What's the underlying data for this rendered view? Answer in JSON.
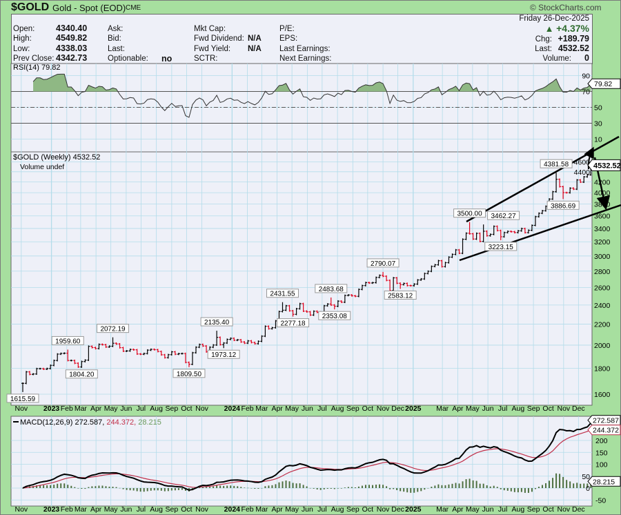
{
  "header": {
    "symbol": "$GOLD",
    "name": "Gold - Spot (EOD)",
    "exchange": "CME",
    "logo": "© StockCharts.com",
    "date": "Friday  26-Dec-2025",
    "change_pct": "+4.37%",
    "change_direction_icon": "up-triangle-icon",
    "fields": {
      "open_label": "Open:",
      "open": "4340.40",
      "high_label": "High:",
      "high": "4549.82",
      "low_label": "Low:",
      "low": "4338.03",
      "prev_close_label": "Prev Close:",
      "prev_close": "4342.73",
      "ask_label": "Ask:",
      "bid_label": "Bid:",
      "last_label_mid": "Last:",
      "optionable_label": "Optionable:",
      "optionable": "no",
      "mkt_cap_label": "Mkt Cap:",
      "fwd_dividend_label": "Fwd Dividend:",
      "fwd_dividend": "N/A",
      "fwd_yield_label": "Fwd Yield:",
      "fwd_yield": "N/A",
      "sctr_label": "SCTR:",
      "pe_label": "P/E:",
      "eps_label": "EPS:",
      "last_earnings_label": "Last Earnings:",
      "next_earnings_label": "Next Earnings:",
      "chg_label": "Chg:",
      "chg": "+189.79",
      "last_label": "Last:",
      "last": "4532.52",
      "volume_label": "Volume:",
      "volume": "0"
    }
  },
  "colors": {
    "background": "#a7df9f",
    "panel": "#eef0f8",
    "grid": "#b3dcea",
    "up": "#000000",
    "down": "#e0001b",
    "macd": "#000000",
    "signal": "#c0304a",
    "histogram": "#4d7040",
    "rsi_fill": "#8fb884",
    "accent_up": "#2e6b2e"
  },
  "chart_data": {
    "type": "ohlc",
    "title": "$GOLD (Weekly) 4532.52",
    "volume_label": "Volume undef",
    "frequency": "weekly",
    "first_week": "2022-11-04",
    "close": [
      1681,
      1771,
      1751,
      1754,
      1797,
      1797,
      1793,
      1798,
      1824,
      1865,
      1920,
      1926,
      1928,
      1865,
      1865,
      1842,
      1811,
      1856,
      1868,
      1989,
      1978,
      1969,
      2007,
      2004,
      1983,
      1990,
      2017,
      2011,
      1977,
      1946,
      1948,
      1961,
      1958,
      1921,
      1919,
      1925,
      1955,
      1962,
      1959,
      1943,
      1914,
      1889,
      1915,
      1940,
      1919,
      1924,
      1925,
      1849,
      1833,
      1932,
      1981,
      2006,
      1992,
      1940,
      1981,
      2001,
      2072,
      2004,
      2019,
      2053,
      2063,
      2045,
      2049,
      2029,
      2018,
      2039,
      2024,
      2013,
      2035,
      2083,
      2179,
      2155,
      2165,
      2233,
      2330,
      2344,
      2392,
      2338,
      2301,
      2360,
      2415,
      2334,
      2327,
      2293,
      2333,
      2322,
      2326,
      2392,
      2411,
      2400,
      2387,
      2443,
      2431,
      2507,
      2512,
      2503,
      2497,
      2577,
      2622,
      2658,
      2653,
      2657,
      2721,
      2747,
      2736,
      2685,
      2563,
      2716,
      2650,
      2633,
      2648,
      2622,
      2621,
      2640,
      2690,
      2702,
      2770,
      2798,
      2861,
      2882,
      2936,
      2858,
      2910,
      2984,
      3022,
      3084,
      3037,
      3237,
      3327,
      3319,
      3240,
      3325,
      3205,
      3357,
      3289,
      3310,
      3433,
      3368,
      3274,
      3337,
      3355,
      3350,
      3337,
      3363,
      3398,
      3336,
      3372,
      3448,
      3587,
      3643,
      3685,
      3760,
      3886,
      4018,
      4251,
      4112,
      4002,
      4000,
      4084,
      4065,
      4239,
      4198,
      4300,
      4339,
      4532.52
    ],
    "first_bar_low": 1615.59,
    "price_axis": {
      "scale": "log",
      "range": [
        1522,
        4820
      ],
      "ticks": [
        "1600",
        "1800",
        "2000",
        "2200",
        "2400",
        "2600",
        "2800",
        "3000",
        "3200",
        "3400",
        "3600",
        "3800",
        "4000",
        "4200",
        "4400",
        "4600"
      ]
    },
    "last_price_tag": "4532.52",
    "annotations": [
      {
        "date": "2022-11-04",
        "value": 1615.59,
        "text": "1615.59",
        "pos": "below"
      },
      {
        "date": "2023-02-03",
        "value": 1959.6,
        "text": "1959.60",
        "pos": "above"
      },
      {
        "date": "2023-03-03",
        "value": 1804.2,
        "text": "1804.20",
        "pos": "below"
      },
      {
        "date": "2023-05-05",
        "value": 2072.19,
        "text": "2072.19",
        "pos": "above"
      },
      {
        "date": "2023-10-06",
        "value": 1809.5,
        "text": "1809.50",
        "pos": "below"
      },
      {
        "date": "2023-12-01",
        "value": 2135.4,
        "text": "2135.40",
        "pos": "above"
      },
      {
        "date": "2023-12-15",
        "value": 1973.12,
        "text": "1973.12",
        "pos": "below"
      },
      {
        "date": "2024-04-12",
        "value": 2431.55,
        "text": "2431.55",
        "pos": "above"
      },
      {
        "date": "2024-05-03",
        "value": 2277.18,
        "text": "2277.18",
        "pos": "below"
      },
      {
        "date": "2024-07-19",
        "value": 2483.68,
        "text": "2483.68",
        "pos": "above"
      },
      {
        "date": "2024-07-26",
        "value": 2353.08,
        "text": "2353.08",
        "pos": "below"
      },
      {
        "date": "2024-11-01",
        "value": 2790.07,
        "text": "2790.07",
        "pos": "above"
      },
      {
        "date": "2024-12-06",
        "value": 2583.12,
        "text": "2583.12",
        "pos": "below"
      },
      {
        "date": "2025-04-25",
        "value": 3500.0,
        "text": "3500.00",
        "pos": "above"
      },
      {
        "date": "2025-05-23",
        "value": 3462.27,
        "text": "3462.27",
        "pos": "above"
      },
      {
        "date": "2025-06-27",
        "value": 3223.15,
        "text": "3223.15",
        "pos": "below"
      },
      {
        "date": "2025-10-17",
        "value": 4381.58,
        "text": "4381.58",
        "pos": "above"
      },
      {
        "date": "2025-10-31",
        "value": 3886.69,
        "text": "3886.69",
        "pos": "below"
      }
    ],
    "x_ticks": [
      {
        "label": "Nov",
        "date": "2022-11-01"
      },
      {
        "label": "2023",
        "date": "2023-01-01",
        "bold": true
      },
      {
        "label": "Feb",
        "date": "2023-02-01"
      },
      {
        "label": "Mar",
        "date": "2023-03-01"
      },
      {
        "label": "Apr",
        "date": "2023-04-01"
      },
      {
        "label": "May",
        "date": "2023-05-01"
      },
      {
        "label": "Jun",
        "date": "2023-06-01"
      },
      {
        "label": "Jul",
        "date": "2023-07-01"
      },
      {
        "label": "Aug",
        "date": "2023-08-01"
      },
      {
        "label": "Sep",
        "date": "2023-09-01"
      },
      {
        "label": "Oct",
        "date": "2023-10-01"
      },
      {
        "label": "Nov",
        "date": "2023-11-01"
      },
      {
        "label": "2024",
        "date": "2024-01-01",
        "bold": true
      },
      {
        "label": "Feb",
        "date": "2024-02-01"
      },
      {
        "label": "Mar",
        "date": "2024-03-01"
      },
      {
        "label": "Apr",
        "date": "2024-04-01"
      },
      {
        "label": "May",
        "date": "2024-05-01"
      },
      {
        "label": "Jun",
        "date": "2024-06-01"
      },
      {
        "label": "Jul",
        "date": "2024-07-01"
      },
      {
        "label": "Aug",
        "date": "2024-08-01"
      },
      {
        "label": "Sep",
        "date": "2024-09-01"
      },
      {
        "label": "Oct",
        "date": "2024-10-01"
      },
      {
        "label": "Nov",
        "date": "2024-11-01"
      },
      {
        "label": "Dec",
        "date": "2024-12-01"
      },
      {
        "label": "2025",
        "date": "2025-01-01",
        "bold": true
      },
      {
        "label": "Mar",
        "date": "2025-03-01"
      },
      {
        "label": "Apr",
        "date": "2025-04-01"
      },
      {
        "label": "May",
        "date": "2025-05-01"
      },
      {
        "label": "Jun",
        "date": "2025-06-01"
      },
      {
        "label": "Jul",
        "date": "2025-07-01"
      },
      {
        "label": "Aug",
        "date": "2025-08-01"
      },
      {
        "label": "Sep",
        "date": "2025-09-01"
      },
      {
        "label": "Oct",
        "date": "2025-10-01"
      },
      {
        "label": "Nov",
        "date": "2025-11-01"
      },
      {
        "label": "Dec",
        "date": "2025-12-01"
      }
    ],
    "rsi": {
      "label": "RSI(14) 79.82",
      "period": 14,
      "last": "79.82",
      "range": [
        0,
        100
      ],
      "ticks": [
        "90",
        "70",
        "50",
        "30",
        "10"
      ],
      "levels": [
        70,
        50,
        30
      ]
    },
    "macd": {
      "label": "MACD(12,26,9)",
      "macd_value": "272.587,",
      "signal_value": "244.372,",
      "hist_value": "28.215",
      "macd_tag": "272.587",
      "signal_tag": "244.372",
      "hist_tag": "28.215",
      "params": [
        12,
        26,
        9
      ],
      "range": [
        -75,
        300
      ],
      "ticks": [
        "200",
        "150",
        "100",
        "50",
        "0",
        "-50"
      ]
    }
  }
}
